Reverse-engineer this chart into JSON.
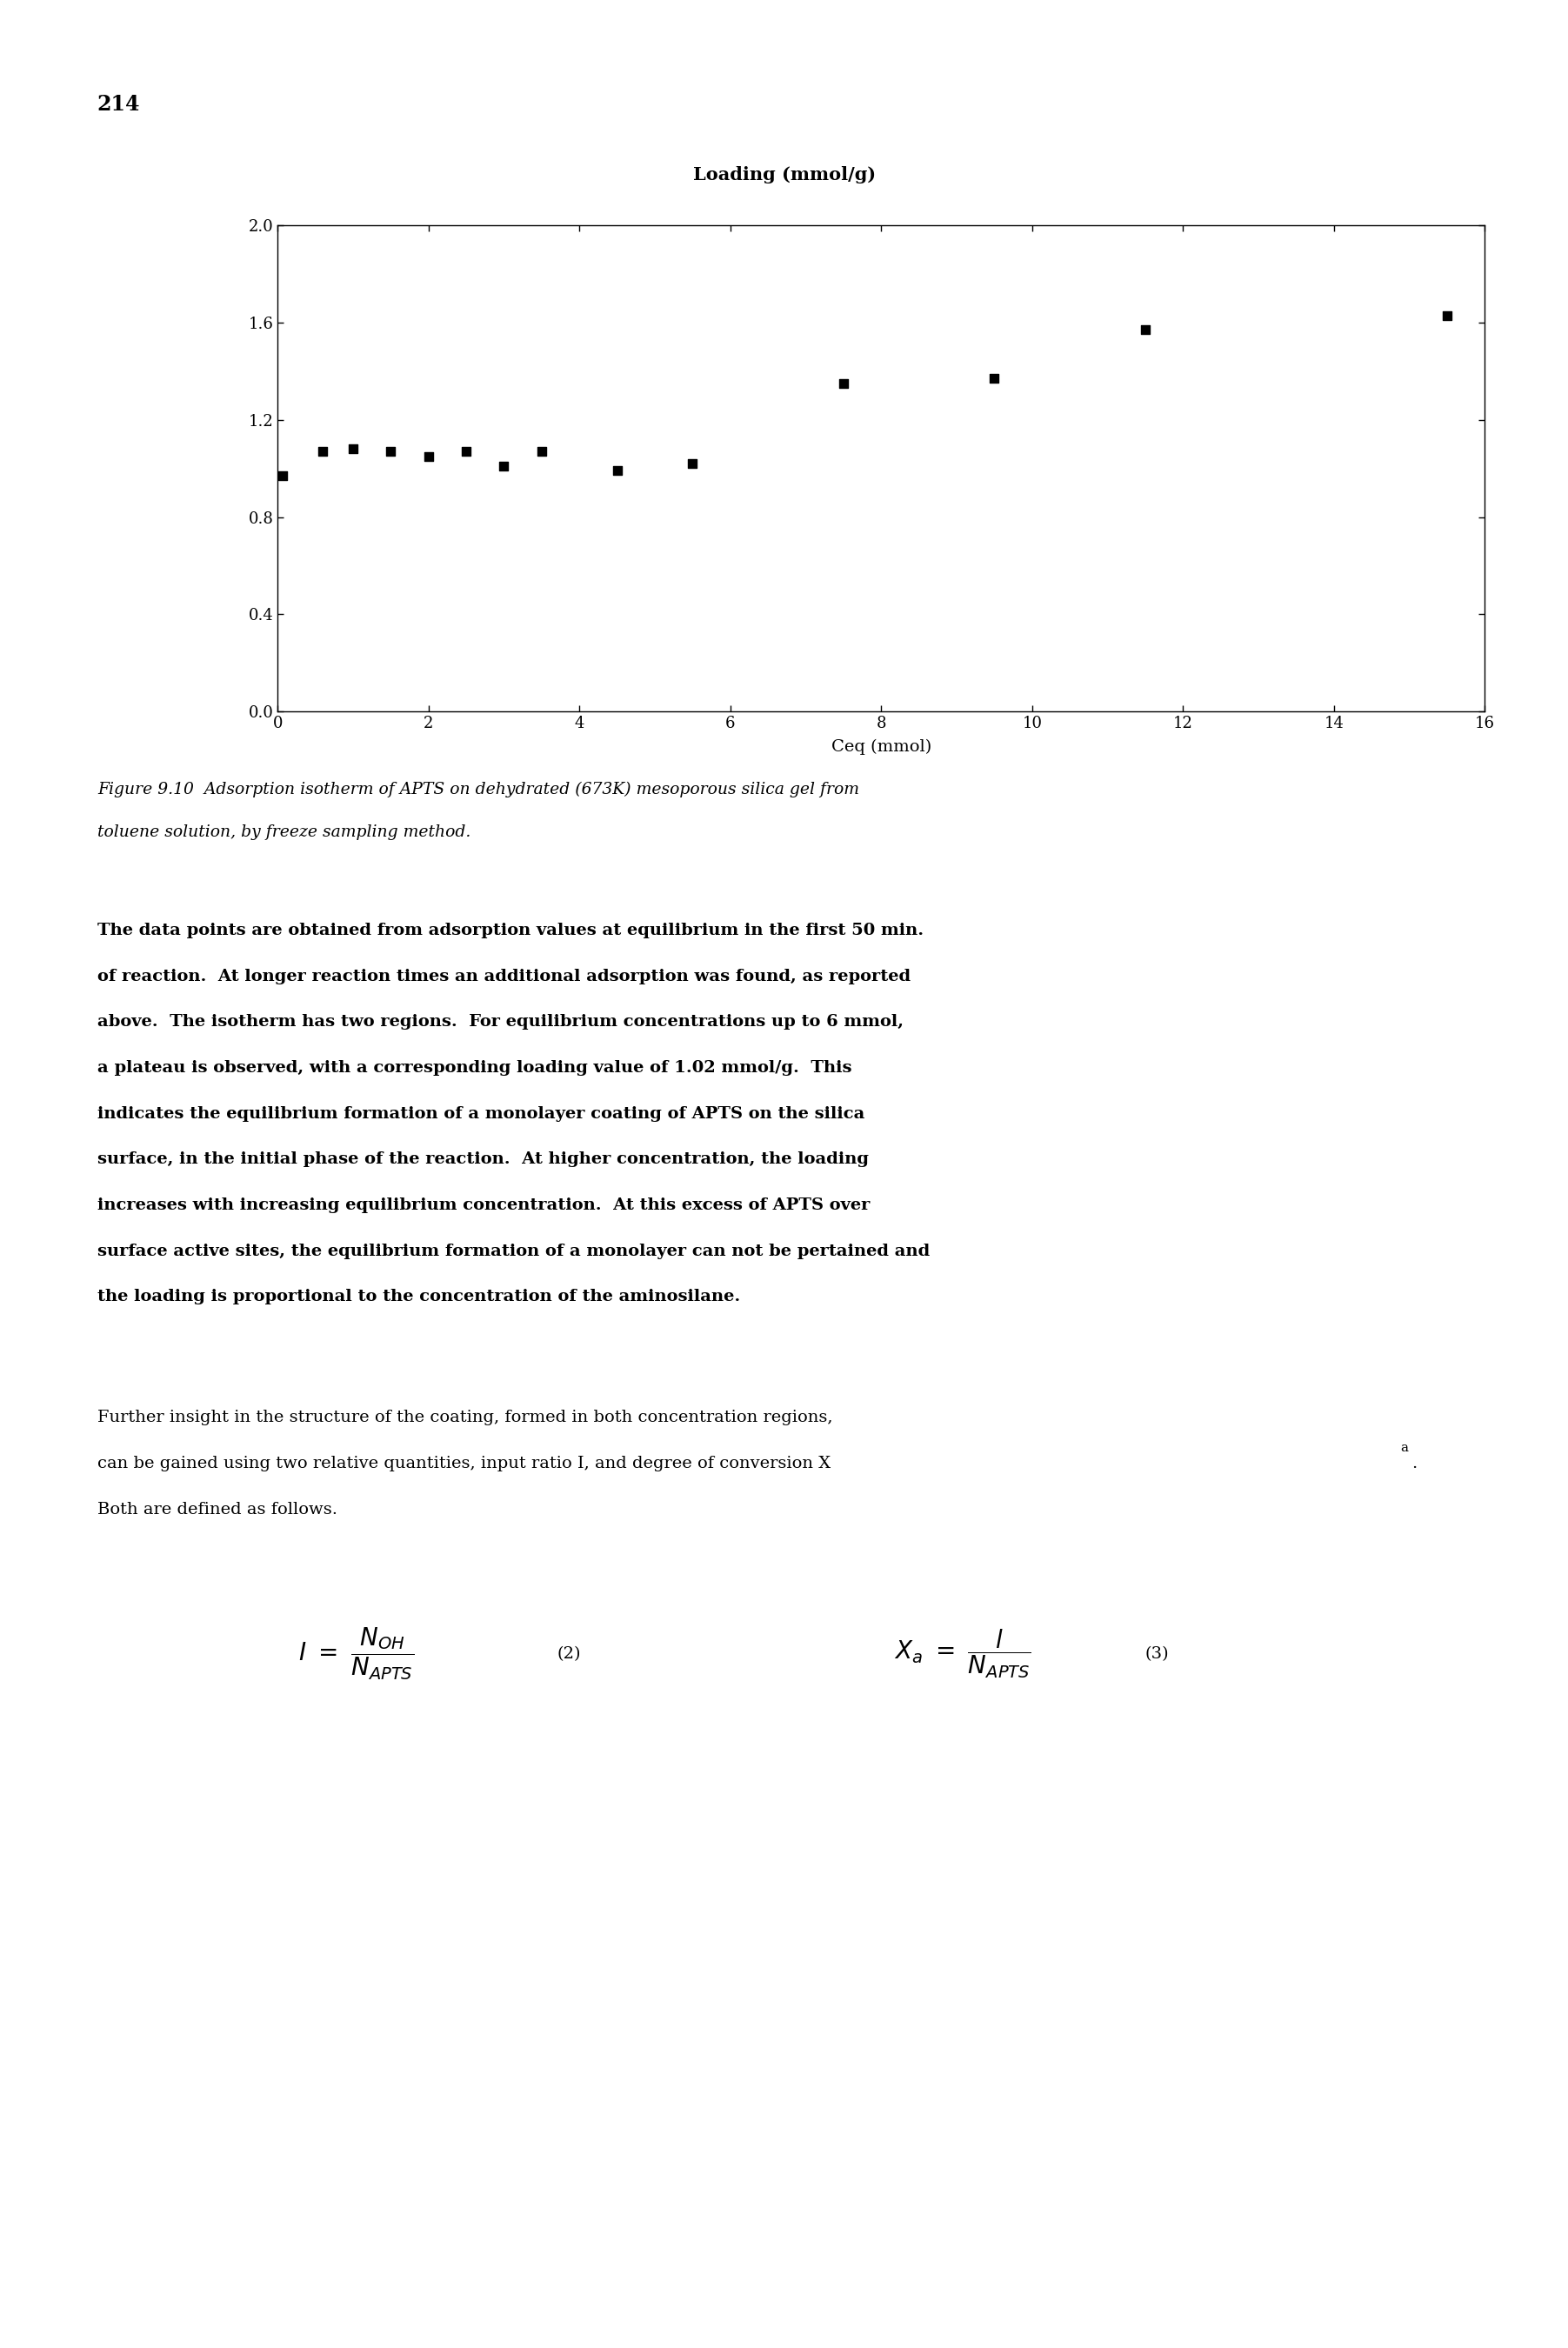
{
  "page_number": "214",
  "scatter_x": [
    0.07,
    0.6,
    1.0,
    1.5,
    2.0,
    2.5,
    3.0,
    3.5,
    4.5,
    5.5,
    7.5,
    9.5,
    11.5,
    15.5
  ],
  "scatter_y": [
    0.97,
    1.07,
    1.08,
    1.07,
    1.05,
    1.07,
    1.01,
    1.07,
    0.99,
    1.02,
    1.35,
    1.37,
    1.57,
    1.63
  ],
  "xlabel": "Ceq (mmol)",
  "ylabel_above": "Loading (mmol/g)",
  "xlim": [
    0,
    16
  ],
  "ylim": [
    0,
    2.0
  ],
  "xticks": [
    0,
    2,
    4,
    6,
    8,
    10,
    12,
    14,
    16
  ],
  "yticks": [
    0,
    0.4,
    0.8,
    1.2,
    1.6,
    2.0
  ],
  "marker_color": "black",
  "marker": "s",
  "marker_size": 55,
  "figure_caption_line1": "Figure 9.10  Adsorption isotherm of APTS on dehydrated (673K) mesoporous silica gel from",
  "figure_caption_line2": "toluene solution, by freeze sampling method.",
  "body1_lines": [
    "The data points are obtained from adsorption values at equilibrium in the first 50 min.",
    "of reaction.  At longer reaction times an additional adsorption was found, as reported",
    "above.  The isotherm has two regions.  For equilibrium concentrations up to 6 mmol,",
    "a plateau is observed, with a corresponding loading value of 1.02 mmol/g.  This",
    "indicates the equilibrium formation of a monolayer coating of APTS on the silica",
    "surface, in the initial phase of the reaction.  At higher concentration, the loading",
    "increases with increasing equilibrium concentration.  At this excess of APTS over",
    "surface active sites, the equilibrium formation of a monolayer can not be pertained and",
    "the loading is proportional to the concentration of the aminosilane."
  ],
  "body2_line1": "Further insight in the structure of the coating, formed in both concentration regions,",
  "body2_line2": "can be gained using two relative quantities, input ratio I, and degree of conversion X",
  "body2_line2_sub": "a",
  "body2_line2_end": ".",
  "body2_line3": "Both are defined as follows.",
  "background_color": "#ffffff",
  "text_color": "#000000",
  "caption_fontsize": 13.5,
  "body_fontsize": 14.0,
  "tick_fontsize": 13,
  "axis_label_fontsize": 14,
  "page_num_fontsize": 17
}
